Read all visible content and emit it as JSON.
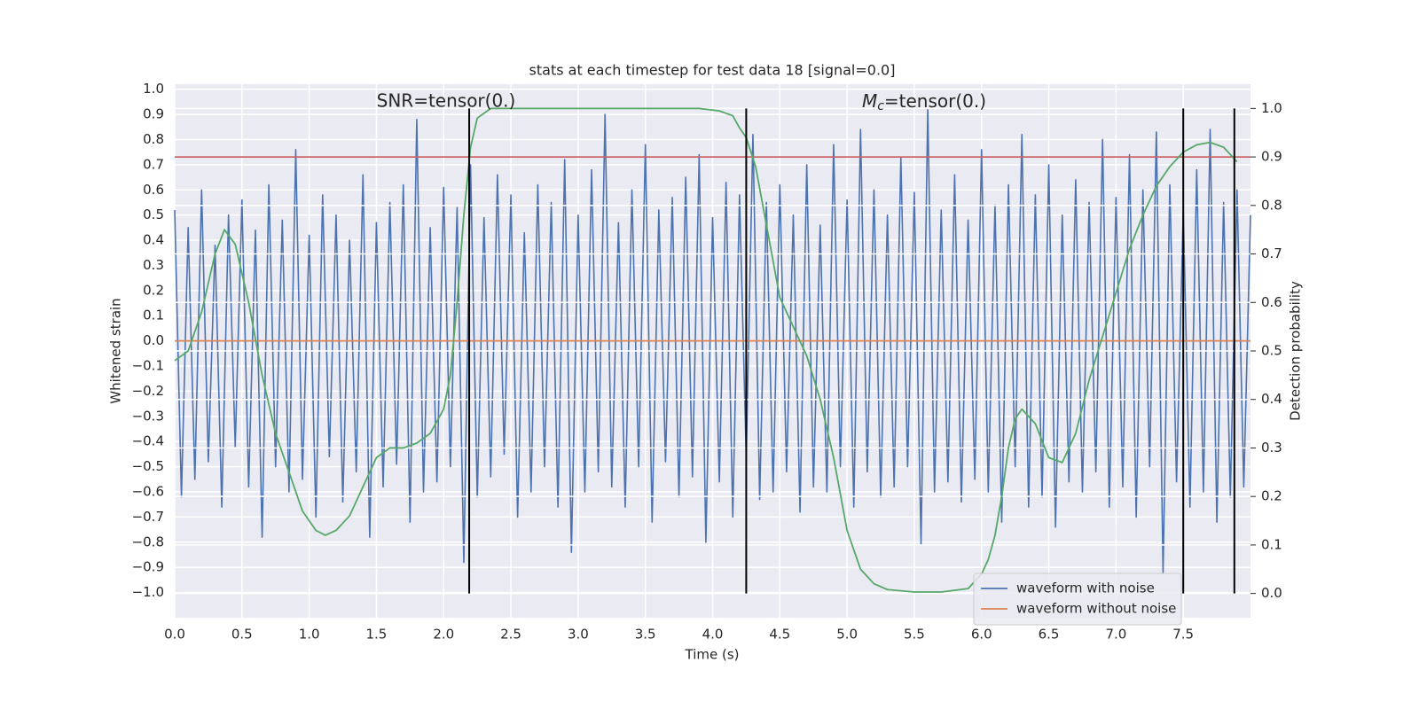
{
  "chart_data": {
    "type": "line",
    "title": "stats at each timestep for test data 18 [signal=0.0]",
    "x_label": "Time (s)",
    "y_label": "Whitened strain",
    "y2_label": "Detection probability",
    "xlim": [
      0,
      8
    ],
    "ylim": [
      -1.1,
      1.02
    ],
    "y2lim": [
      -0.05,
      1.05
    ],
    "xticks": [
      {
        "value": 0,
        "label": "0.0"
      },
      {
        "value": 0.5,
        "label": "0.5"
      },
      {
        "value": 1,
        "label": "1.0"
      },
      {
        "value": 1.5,
        "label": "1.5"
      },
      {
        "value": 2,
        "label": "2.0"
      },
      {
        "value": 2.5,
        "label": "2.5"
      },
      {
        "value": 3,
        "label": "3.0"
      },
      {
        "value": 3.5,
        "label": "3.5"
      },
      {
        "value": 4,
        "label": "4.0"
      },
      {
        "value": 4.5,
        "label": "4.5"
      },
      {
        "value": 5,
        "label": "5.0"
      },
      {
        "value": 5.5,
        "label": "5.5"
      },
      {
        "value": 6,
        "label": "6.0"
      },
      {
        "value": 6.5,
        "label": "6.5"
      },
      {
        "value": 7,
        "label": "7.0"
      },
      {
        "value": 7.5,
        "label": "7.5"
      }
    ],
    "yticks": [
      {
        "value": -1,
        "label": "−1.0"
      },
      {
        "value": -0.9,
        "label": "−0.9"
      },
      {
        "value": -0.8,
        "label": "−0.8"
      },
      {
        "value": -0.7,
        "label": "−0.7"
      },
      {
        "value": -0.6,
        "label": "−0.6"
      },
      {
        "value": -0.5,
        "label": "−0.5"
      },
      {
        "value": -0.4,
        "label": "−0.4"
      },
      {
        "value": -0.3,
        "label": "−0.3"
      },
      {
        "value": -0.2,
        "label": "−0.2"
      },
      {
        "value": -0.1,
        "label": "−0.1"
      },
      {
        "value": 0,
        "label": "0.0"
      },
      {
        "value": 0.1,
        "label": "0.1"
      },
      {
        "value": 0.2,
        "label": "0.2"
      },
      {
        "value": 0.3,
        "label": "0.3"
      },
      {
        "value": 0.4,
        "label": "0.4"
      },
      {
        "value": 0.5,
        "label": "0.5"
      },
      {
        "value": 0.6,
        "label": "0.6"
      },
      {
        "value": 0.7,
        "label": "0.7"
      },
      {
        "value": 0.8,
        "label": "0.8"
      },
      {
        "value": 0.9,
        "label": "0.9"
      },
      {
        "value": 1,
        "label": "1.0"
      }
    ],
    "y2ticks": [
      {
        "value": 0,
        "label": "0.0"
      },
      {
        "value": 0.1,
        "label": "0.1"
      },
      {
        "value": 0.2,
        "label": "0.2"
      },
      {
        "value": 0.3,
        "label": "0.3"
      },
      {
        "value": 0.4,
        "label": "0.4"
      },
      {
        "value": 0.5,
        "label": "0.5"
      },
      {
        "value": 0.6,
        "label": "0.6"
      },
      {
        "value": 0.7,
        "label": "0.7"
      },
      {
        "value": 0.8,
        "label": "0.8"
      },
      {
        "value": 0.9,
        "label": "0.9"
      },
      {
        "value": 1,
        "label": "1.0"
      }
    ],
    "grid": true,
    "legend": "lower right",
    "series": [
      {
        "name": "waveform with noise",
        "color": "#4c72b0",
        "x": [
          0,
          0.05,
          0.1,
          0.15,
          0.2,
          0.25,
          0.3,
          0.35,
          0.4,
          0.45,
          0.5,
          0.55,
          0.6,
          0.65,
          0.7,
          0.75,
          0.8,
          0.85,
          0.9,
          0.95,
          1,
          1.05,
          1.1,
          1.15,
          1.2,
          1.25,
          1.3,
          1.35,
          1.4,
          1.45,
          1.5,
          1.55,
          1.6,
          1.65,
          1.7,
          1.75,
          1.8,
          1.85,
          1.9,
          1.95,
          2,
          2.05,
          2.1,
          2.15,
          2.2,
          2.25,
          2.3,
          2.35,
          2.4,
          2.45,
          2.5,
          2.55,
          2.6,
          2.65,
          2.7,
          2.75,
          2.8,
          2.85,
          2.9,
          2.95,
          3,
          3.05,
          3.1,
          3.15,
          3.2,
          3.25,
          3.3,
          3.35,
          3.4,
          3.45,
          3.5,
          3.55,
          3.6,
          3.65,
          3.7,
          3.75,
          3.8,
          3.85,
          3.9,
          3.95,
          4,
          4.05,
          4.1,
          4.15,
          4.2,
          4.25,
          4.3,
          4.35,
          4.4,
          4.45,
          4.5,
          4.55,
          4.6,
          4.65,
          4.7,
          4.75,
          4.8,
          4.85,
          4.9,
          4.95,
          5,
          5.05,
          5.1,
          5.15,
          5.2,
          5.25,
          5.3,
          5.35,
          5.4,
          5.45,
          5.5,
          5.55,
          5.6,
          5.65,
          5.7,
          5.75,
          5.8,
          5.85,
          5.9,
          5.95,
          6,
          6.05,
          6.1,
          6.15,
          6.2,
          6.25,
          6.3,
          6.35,
          6.4,
          6.45,
          6.5,
          6.55,
          6.6,
          6.65,
          6.7,
          6.75,
          6.8,
          6.85,
          6.9,
          6.95,
          7,
          7.05,
          7.1,
          7.15,
          7.2,
          7.25,
          7.3,
          7.35,
          7.4,
          7.45,
          7.5,
          7.55,
          7.6,
          7.65,
          7.7,
          7.75,
          7.8,
          7.85,
          7.9,
          7.95,
          8
        ],
        "values": [
          0.52,
          -0.62,
          0.45,
          -0.55,
          0.6,
          -0.48,
          0.38,
          -0.66,
          0.5,
          -0.42,
          0.56,
          -0.58,
          0.44,
          -0.78,
          0.62,
          -0.5,
          0.48,
          -0.6,
          0.76,
          -0.55,
          0.42,
          -0.7,
          0.58,
          -0.46,
          0.5,
          -0.64,
          0.4,
          -0.52,
          0.66,
          -0.78,
          0.47,
          -0.58,
          0.55,
          -0.49,
          0.62,
          -0.72,
          0.88,
          -0.6,
          0.45,
          -0.56,
          0.61,
          -0.5,
          0.53,
          -0.88,
          0.7,
          -0.62,
          0.49,
          -0.54,
          0.66,
          -0.45,
          0.58,
          -0.7,
          0.43,
          -0.6,
          0.62,
          -0.5,
          0.55,
          -0.66,
          0.72,
          -0.84,
          0.5,
          -0.6,
          0.68,
          -0.52,
          0.9,
          -0.58,
          0.47,
          -0.66,
          0.6,
          -0.5,
          0.78,
          -0.72,
          0.52,
          -0.48,
          0.57,
          -0.62,
          0.65,
          -0.54,
          0.74,
          -0.8,
          0.49,
          -0.56,
          0.63,
          -0.7,
          0.58,
          -0.46,
          0.82,
          -0.63,
          0.55,
          -0.6,
          0.62,
          -0.52,
          0.5,
          -0.68,
          0.7,
          -0.58,
          0.46,
          -0.6,
          0.78,
          -0.5,
          0.56,
          -0.66,
          0.84,
          -0.52,
          0.6,
          -0.62,
          0.5,
          -0.58,
          0.73,
          -0.5,
          0.59,
          -0.81,
          0.92,
          -0.6,
          0.52,
          -0.56,
          0.66,
          -0.64,
          0.48,
          -0.55,
          0.76,
          -0.6,
          0.54,
          -0.72,
          0.62,
          -0.5,
          0.82,
          -0.66,
          0.58,
          -0.62,
          0.7,
          -0.74,
          0.5,
          -0.56,
          0.64,
          -0.6,
          0.55,
          -0.52,
          0.8,
          -0.66,
          0.57,
          -0.58,
          0.74,
          -0.7,
          0.6,
          -0.5,
          0.83,
          -0.92,
          0.62,
          -0.56,
          0.52,
          -0.66,
          0.68,
          -0.6,
          0.84,
          -0.72,
          0.55,
          -0.62,
          0.6,
          -0.58,
          0.5
        ]
      },
      {
        "name": "waveform without noise",
        "color": "#dd8452",
        "x": [
          0,
          8
        ],
        "values": [
          0,
          0
        ]
      },
      {
        "color": "#55a868",
        "axis": "y2",
        "x": [
          0,
          0.1,
          0.2,
          0.3,
          0.37,
          0.45,
          0.55,
          0.65,
          0.75,
          0.85,
          0.95,
          1.05,
          1.12,
          1.2,
          1.3,
          1.4,
          1.5,
          1.6,
          1.7,
          1.8,
          1.9,
          2,
          2.05,
          2.1,
          2.15,
          2.2,
          2.25,
          2.35,
          3,
          3.5,
          3.9,
          4.05,
          4.15,
          4.2,
          4.25,
          4.32,
          4.4,
          4.5,
          4.6,
          4.7,
          4.8,
          4.9,
          5,
          5.1,
          5.2,
          5.3,
          5.5,
          5.7,
          5.9,
          6,
          6.05,
          6.1,
          6.15,
          6.2,
          6.25,
          6.3,
          6.4,
          6.5,
          6.6,
          6.7,
          6.8,
          6.9,
          7,
          7.1,
          7.2,
          7.3,
          7.4,
          7.5,
          7.6,
          7.7,
          7.8,
          7.9
        ],
        "values": [
          0.48,
          0.5,
          0.58,
          0.7,
          0.75,
          0.72,
          0.6,
          0.45,
          0.33,
          0.25,
          0.17,
          0.13,
          0.12,
          0.13,
          0.16,
          0.22,
          0.28,
          0.3,
          0.3,
          0.31,
          0.33,
          0.38,
          0.45,
          0.6,
          0.78,
          0.92,
          0.98,
          1,
          1,
          1,
          1,
          0.995,
          0.985,
          0.96,
          0.94,
          0.88,
          0.76,
          0.61,
          0.55,
          0.49,
          0.4,
          0.28,
          0.13,
          0.05,
          0.02,
          0.008,
          0.003,
          0.003,
          0.01,
          0.04,
          0.07,
          0.12,
          0.2,
          0.3,
          0.36,
          0.38,
          0.35,
          0.28,
          0.27,
          0.33,
          0.44,
          0.53,
          0.62,
          0.71,
          0.78,
          0.84,
          0.88,
          0.91,
          0.925,
          0.93,
          0.92,
          0.89
        ]
      }
    ],
    "threshold": {
      "value": 0.9,
      "axis": "y2",
      "color": "#c44e52"
    },
    "vlines": {
      "x": [
        2.19,
        4.25,
        7.5,
        7.88
      ],
      "y2range": [
        0,
        1
      ],
      "color": "#000000"
    },
    "annotations": [
      {
        "text": "SNR=tensor(0.)"
      },
      {
        "symbol": "M",
        "subscript": "c",
        "text": "=tensor(0.)"
      }
    ]
  }
}
